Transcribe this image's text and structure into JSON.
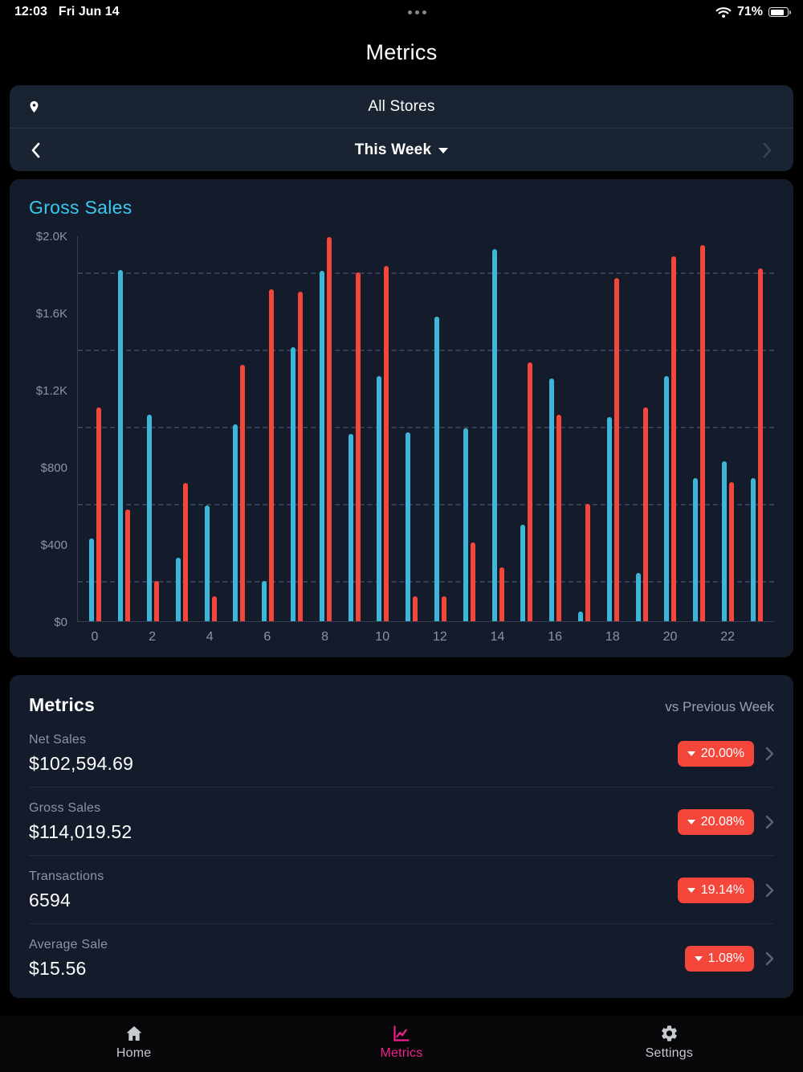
{
  "status_bar": {
    "time": "12:03",
    "date": "Fri Jun 14",
    "battery": "71%"
  },
  "header": {
    "title": "Metrics"
  },
  "filters": {
    "store": "All Stores",
    "period": "This Week"
  },
  "chart_data": {
    "type": "bar",
    "title": "Gross Sales",
    "x": [
      0,
      1,
      2,
      3,
      4,
      5,
      6,
      7,
      8,
      9,
      10,
      11,
      12,
      13,
      14,
      15,
      16,
      17,
      18,
      19,
      20,
      21,
      22,
      23
    ],
    "series": [
      {
        "name": "blue-series",
        "color": "#3db6d9",
        "values": [
          430,
          1820,
          1070,
          330,
          600,
          1020,
          210,
          1420,
          1815,
          970,
          1270,
          980,
          1580,
          1000,
          1930,
          500,
          1260,
          50,
          1060,
          250,
          1270,
          740,
          830,
          740
        ]
      },
      {
        "name": "red-series",
        "color": "#f4473b",
        "values": [
          1110,
          580,
          210,
          715,
          130,
          1330,
          1720,
          1710,
          1990,
          1810,
          1840,
          130,
          130,
          410,
          280,
          1340,
          1070,
          610,
          1780,
          1110,
          1890,
          1950,
          720,
          1830
        ]
      }
    ],
    "ylim": [
      0,
      2000
    ],
    "ytick_values": [
      0,
      400,
      800,
      1200,
      1600,
      2000
    ],
    "ytick_labels": [
      "$0",
      "$400",
      "$800",
      "$1.2K",
      "$1.6K",
      "$2.0K"
    ],
    "gridline_values": [
      200,
      600,
      1000,
      1400,
      1800
    ],
    "xtick_labels": [
      "0",
      "2",
      "4",
      "6",
      "8",
      "10",
      "12",
      "14",
      "16",
      "18",
      "20",
      "22"
    ],
    "grid": "dashed-horizontal",
    "legend": "none"
  },
  "metrics_card": {
    "title": "Metrics",
    "comparison_label": "vs Previous Week",
    "rows": [
      {
        "label": "Net Sales",
        "value": "$102,594.69",
        "change": "20.00%",
        "direction": "down"
      },
      {
        "label": "Gross Sales",
        "value": "$114,019.52",
        "change": "20.08%",
        "direction": "down"
      },
      {
        "label": "Transactions",
        "value": "6594",
        "change": "19.14%",
        "direction": "down"
      },
      {
        "label": "Average Sale",
        "value": "$15.56",
        "change": "1.08%",
        "direction": "down"
      }
    ],
    "badge_color": "#f4463b"
  },
  "tab_bar": {
    "items": [
      {
        "label": "Home",
        "active": false
      },
      {
        "label": "Metrics",
        "active": true
      },
      {
        "label": "Settings",
        "active": false
      }
    ],
    "active_color": "#f0218f"
  }
}
